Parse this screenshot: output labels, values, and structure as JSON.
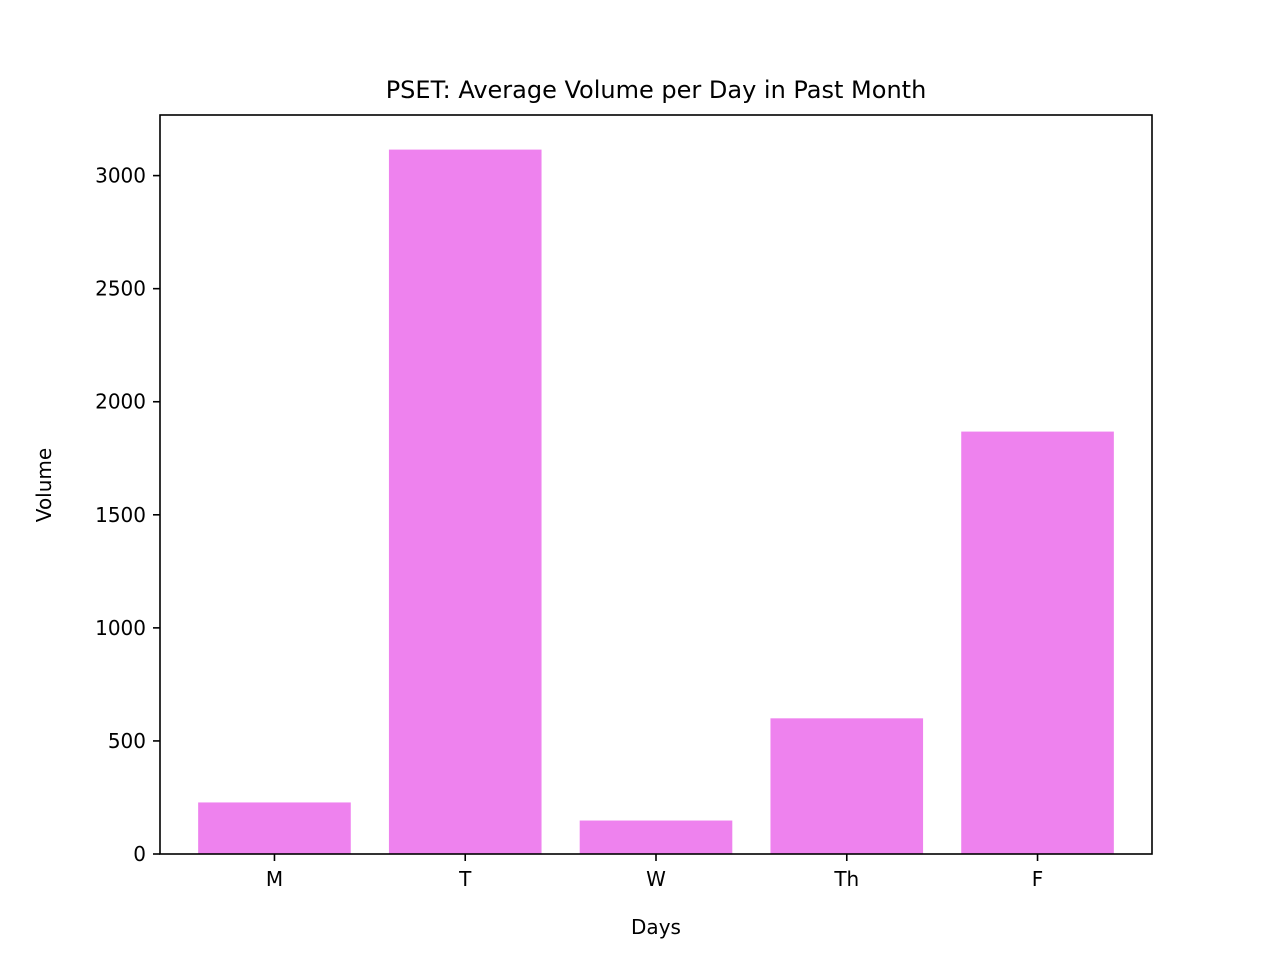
{
  "chart_data": {
    "type": "bar",
    "title": "PSET: Average Volume per Day in Past Month",
    "xlabel": "Days",
    "ylabel": "Volume",
    "categories": [
      "M",
      "T",
      "W",
      "Th",
      "F"
    ],
    "values": [
      228,
      3115,
      148,
      600,
      1868
    ],
    "ylim": [
      0,
      3268
    ],
    "yticks": [
      0,
      500,
      1000,
      1500,
      2000,
      2500,
      3000
    ],
    "grid": false,
    "bar_color": "#ee82ee"
  }
}
